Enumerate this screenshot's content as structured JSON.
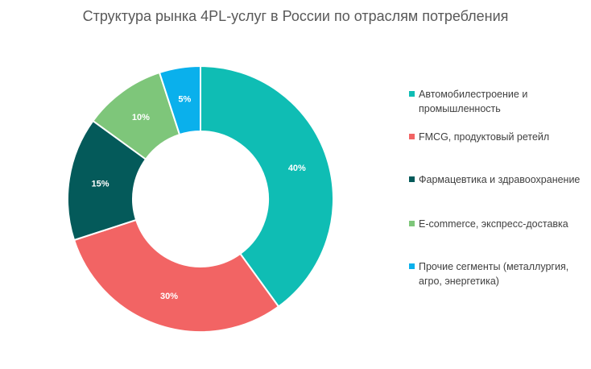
{
  "chart_data": {
    "type": "pie",
    "title": "Структура рынка 4PL-услуг в России по отраслям потребления",
    "donut": true,
    "legend_position": "right",
    "categories": [
      "Автомобилестроение и промышленность",
      "FMCG, продуктовый ретейл",
      "Фармацевтика и здравоохранение",
      "E-commerce, экспресс-доставка",
      "Прочие сегменты (металлургия, агро, энергетика)"
    ],
    "values": [
      40,
      30,
      15,
      10,
      5
    ],
    "data_labels": [
      "40%",
      "30%",
      "15%",
      "10%",
      "5%"
    ],
    "colors": [
      "#0fbdb4",
      "#f26464",
      "#045a5a",
      "#7ec67a",
      "#0ab0ec"
    ]
  }
}
